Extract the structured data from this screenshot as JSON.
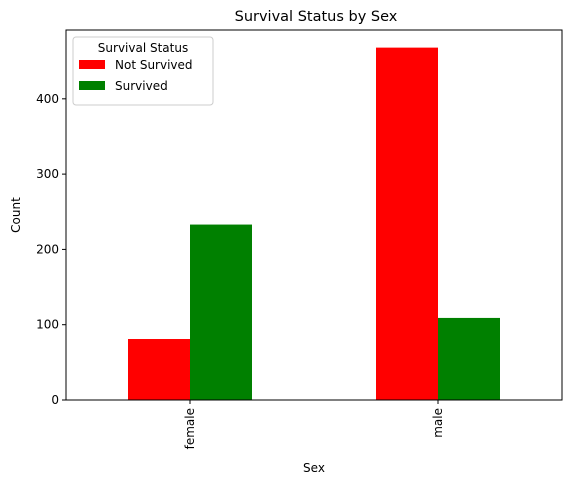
{
  "chart_data": {
    "type": "bar",
    "title": "Survival Status by Sex",
    "xlabel": "Sex",
    "ylabel": "Count",
    "categories": [
      "female",
      "male"
    ],
    "series": [
      {
        "name": "Not Survived",
        "values": [
          81,
          468
        ],
        "color": "#ff0000"
      },
      {
        "name": "Survived",
        "values": [
          233,
          109
        ],
        "color": "#008000"
      }
    ],
    "ylim": [
      0,
      491.4
    ],
    "yticks": [
      0,
      100,
      200,
      300,
      400
    ],
    "legend": {
      "title": "Survival Status",
      "placement": "top-left"
    },
    "grid": false,
    "xtick_rotation": 90
  }
}
